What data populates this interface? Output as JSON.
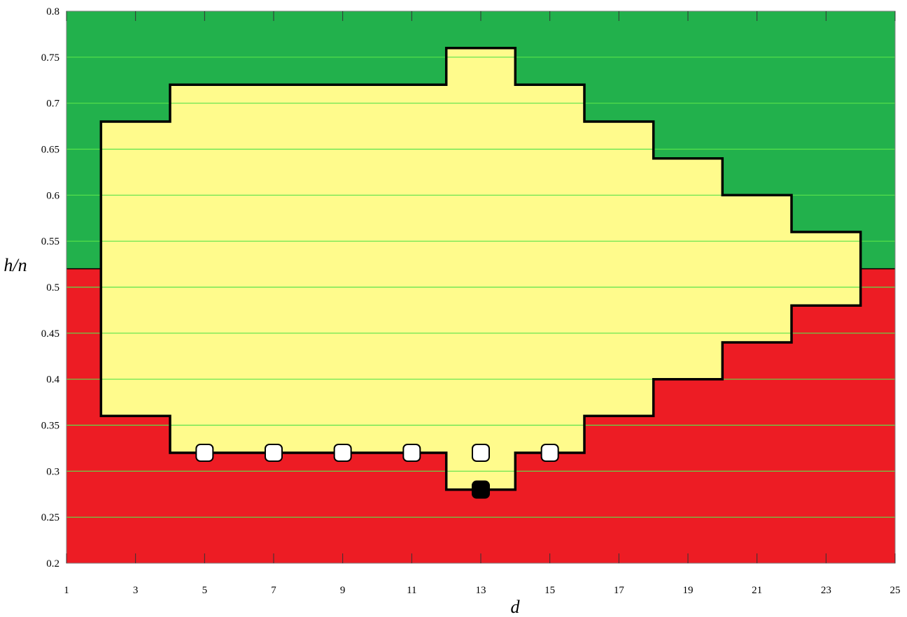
{
  "chart_data": {
    "type": "area",
    "xlabel": "d",
    "ylabel": "h/n",
    "xlim": [
      1,
      25
    ],
    "ylim": [
      0.2,
      0.8
    ],
    "x_ticks": [
      1,
      3,
      5,
      7,
      9,
      11,
      13,
      15,
      17,
      19,
      21,
      23,
      25
    ],
    "y_ticks": [
      0.2,
      0.25,
      0.3,
      0.35,
      0.4,
      0.45,
      0.5,
      0.55,
      0.6,
      0.65,
      0.7,
      0.75,
      0.8
    ],
    "y_tick_labels": [
      "0.2",
      "0.25",
      "0.3",
      "0.35",
      "0.4",
      "0.45",
      "0.5",
      "0.55",
      "0.6",
      "0.65",
      "0.7",
      "0.75",
      "0.8"
    ],
    "horizontal_grid": true,
    "background_split_y": 0.52,
    "colors": {
      "upper_region": "#22b14c",
      "lower_region": "#ed1c24",
      "feasible_region": "#fffb8c",
      "grid": "#59e34a",
      "boundary": "#000000"
    },
    "region": {
      "upper_boundary": [
        {
          "x": 2,
          "y": 0.68
        },
        {
          "x": 4,
          "y": 0.68
        },
        {
          "x": 4,
          "y": 0.72
        },
        {
          "x": 12,
          "y": 0.72
        },
        {
          "x": 12,
          "y": 0.76
        },
        {
          "x": 14,
          "y": 0.76
        },
        {
          "x": 14,
          "y": 0.72
        },
        {
          "x": 16,
          "y": 0.72
        },
        {
          "x": 16,
          "y": 0.68
        },
        {
          "x": 18,
          "y": 0.68
        },
        {
          "x": 18,
          "y": 0.64
        },
        {
          "x": 20,
          "y": 0.64
        },
        {
          "x": 20,
          "y": 0.6
        },
        {
          "x": 22,
          "y": 0.6
        },
        {
          "x": 22,
          "y": 0.56
        },
        {
          "x": 24,
          "y": 0.56
        },
        {
          "x": 24,
          "y": 0.48
        }
      ],
      "lower_boundary": [
        {
          "x": 24,
          "y": 0.48
        },
        {
          "x": 22,
          "y": 0.48
        },
        {
          "x": 22,
          "y": 0.44
        },
        {
          "x": 20,
          "y": 0.44
        },
        {
          "x": 20,
          "y": 0.4
        },
        {
          "x": 18,
          "y": 0.4
        },
        {
          "x": 18,
          "y": 0.36
        },
        {
          "x": 16,
          "y": 0.36
        },
        {
          "x": 16,
          "y": 0.32
        },
        {
          "x": 14,
          "y": 0.32
        },
        {
          "x": 14,
          "y": 0.28
        },
        {
          "x": 12,
          "y": 0.28
        },
        {
          "x": 12,
          "y": 0.32
        },
        {
          "x": 4,
          "y": 0.32
        },
        {
          "x": 4,
          "y": 0.36
        },
        {
          "x": 2,
          "y": 0.36
        },
        {
          "x": 2,
          "y": 0.68
        }
      ]
    },
    "series": [
      {
        "marker": "open-square",
        "points": [
          {
            "x": 5,
            "y": 0.32
          },
          {
            "x": 7,
            "y": 0.32
          },
          {
            "x": 9,
            "y": 0.32
          },
          {
            "x": 11,
            "y": 0.32
          },
          {
            "x": 13,
            "y": 0.32
          },
          {
            "x": 15,
            "y": 0.32
          }
        ]
      },
      {
        "marker": "filled-square",
        "points": [
          {
            "x": 13,
            "y": 0.28
          }
        ]
      }
    ]
  }
}
